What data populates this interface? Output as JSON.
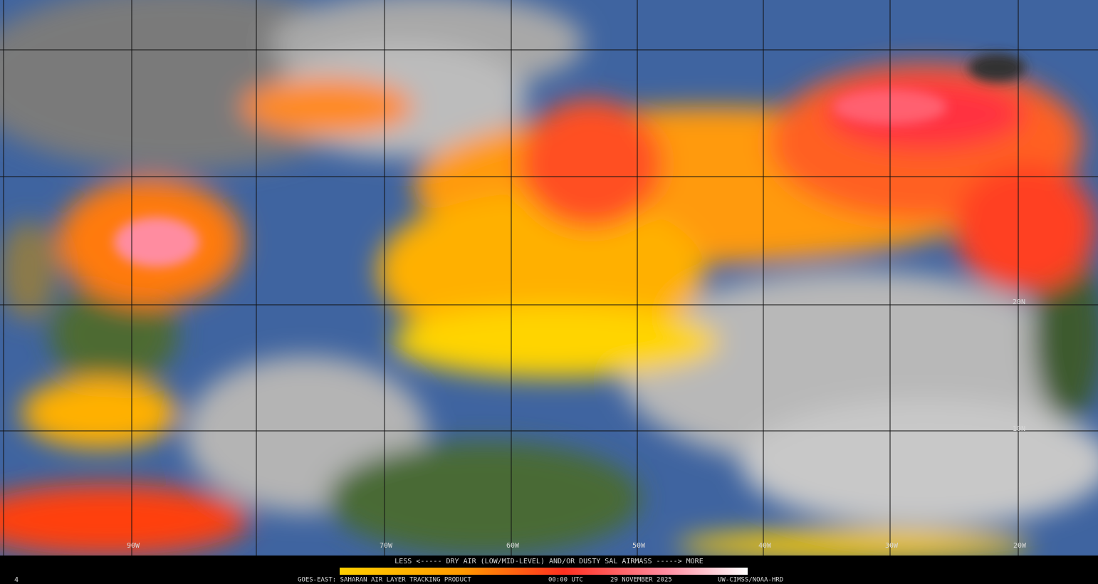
{
  "legend": {
    "caption": "LESS <----- DRY AIR (LOW/MID-LEVEL) AND/OR DUSTY SAL AIRMASS -----> MORE"
  },
  "footer": {
    "frame": "4",
    "product": "GOES-EAST: SAHARAN AIR LAYER TRACKING PRODUCT",
    "time": "00:00 UTC",
    "date": "29 NOVEMBER 2025",
    "credit": "UW-CIMSS/NOAA-HRD"
  },
  "longitude_labels": [
    "90W",
    "70W",
    "60W",
    "50W",
    "40W",
    "30W",
    "20W"
  ],
  "latitude_labels": [
    "20N",
    "10N"
  ]
}
